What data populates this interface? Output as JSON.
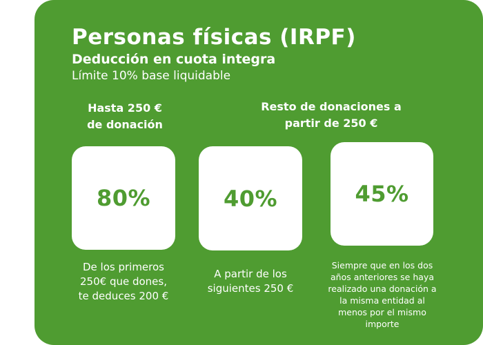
{
  "header": {
    "title": "Personas físicas (IRPF)",
    "subtitle": "Deducción en cuota integra",
    "limit": "Límite 10% base liquidable"
  },
  "sections": {
    "first": {
      "line1": "Hasta 250 €",
      "line2": "de donación"
    },
    "rest": {
      "line1": "Resto de donaciones a",
      "line2": "partir de 250 €"
    }
  },
  "cards": [
    {
      "value": "80%",
      "description_lines": [
        "De los primeros",
        "250€ que dones,",
        "te deduces 200 €"
      ]
    },
    {
      "value": "40%",
      "description_lines": [
        "A partir de los",
        "siguientes 250 €"
      ]
    },
    {
      "value": "45%",
      "description_lines": [
        "Siempre que en los dos",
        "años anteriores se haya",
        "realizado una donación a",
        "la misma entidad al",
        "menos por el mismo",
        "importe"
      ]
    }
  ],
  "colors": {
    "panel_green": "#4f9c31",
    "card_white": "#ffffff",
    "text_white": "#ffffff"
  }
}
